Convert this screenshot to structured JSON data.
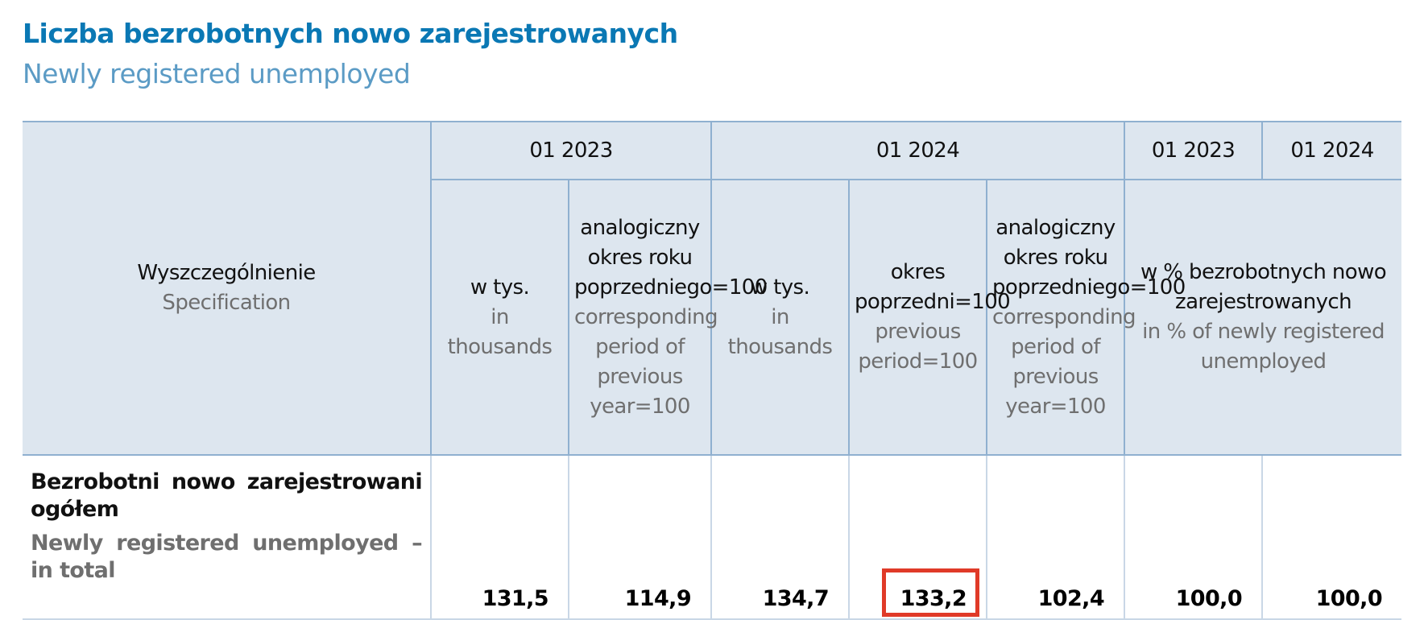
{
  "title": "Liczba bezrobotnych nowo zarejestrowanych",
  "subtitle": "Newly registered unemployed",
  "header": {
    "spec": {
      "pl": "Wyszczególnienie",
      "en": "Specification"
    },
    "groups": [
      "01 2023",
      "01 2024",
      "01 2023",
      "01 2024"
    ],
    "columns": [
      {
        "pl": "w tys.",
        "en": "in thousands"
      },
      {
        "pl": "analogiczny okres roku poprzedniego=100",
        "en": "corresponding period of previous year=100"
      },
      {
        "pl": "w tys.",
        "en": "in thousands"
      },
      {
        "pl": "okres poprzedni=100",
        "en": "previous period=100"
      },
      {
        "pl": "analogiczny okres roku poprzedniego=100",
        "en": "corresponding period of previous year=100"
      }
    ],
    "share": {
      "pl": "w % bezrobotnych nowo zarejestrowanych",
      "en": "in % of newly registered unemployed"
    }
  },
  "rows": [
    {
      "label": {
        "pl": "Bezrobotni nowo zarejestrowani ogółem",
        "en": "Newly registered unemployed – in total"
      },
      "values": [
        "131,5",
        "114,9",
        "134,7",
        "133,2",
        "102,4",
        "100,0",
        "100,0"
      ]
    }
  ]
}
